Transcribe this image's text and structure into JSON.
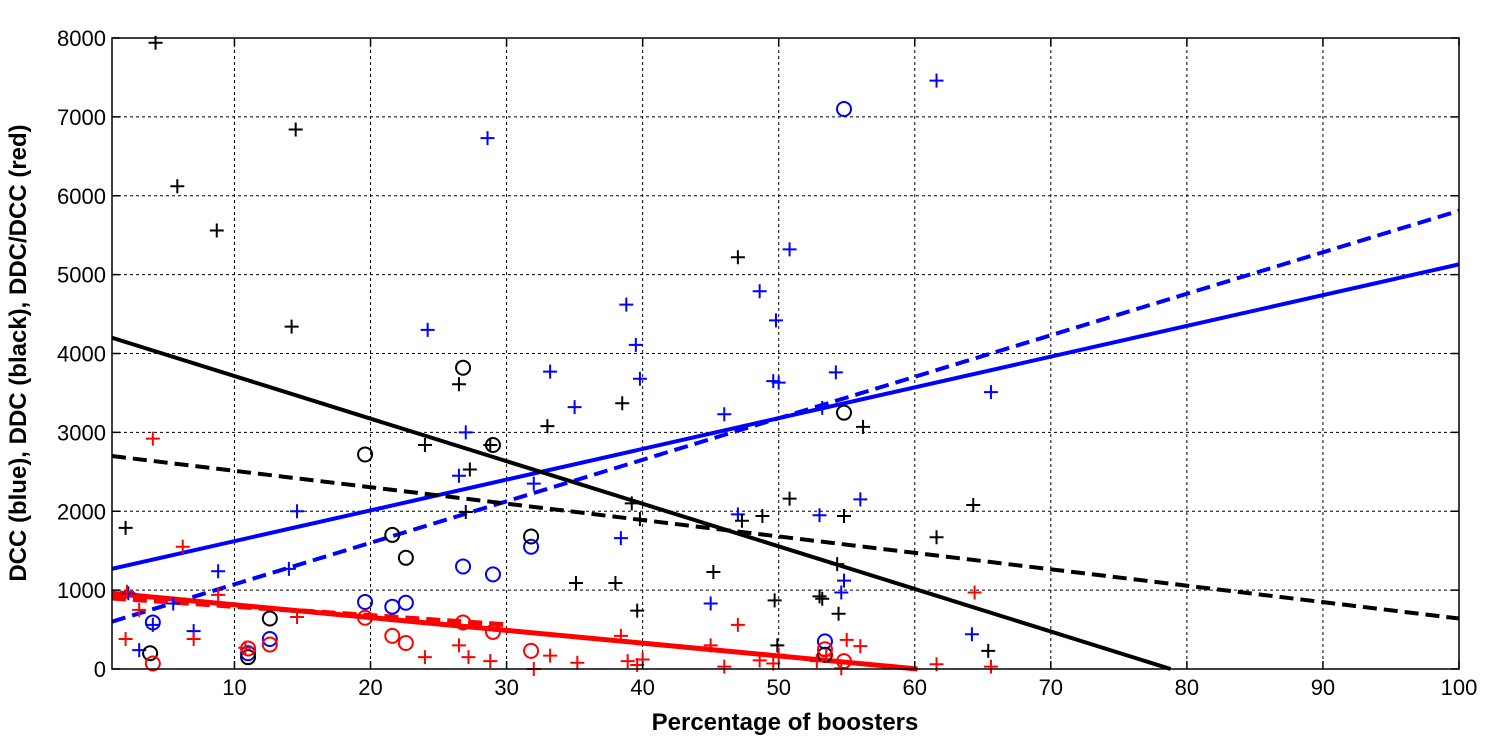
{
  "chart_data": {
    "type": "scatter",
    "xlabel": "Percentage of boosters",
    "ylabel": "DCC (blue), DDC (black), DDC/DCC (red)",
    "xlim": [
      1,
      100
    ],
    "ylim": [
      0,
      8000
    ],
    "x_ticks": [
      "10",
      "20",
      "30",
      "40",
      "50",
      "60",
      "70",
      "80",
      "90",
      "100"
    ],
    "y_ticks": [
      "0",
      "1000",
      "2000",
      "3000",
      "4000",
      "5000",
      "6000",
      "7000",
      "8000"
    ],
    "grid": true,
    "legend": "none",
    "colors": {
      "blue": "#0000ff",
      "black": "#000000",
      "red": "#ff0000"
    },
    "series": [
      {
        "color": "blue",
        "marker": "plus",
        "points": [
          [
            2.2,
            960
          ],
          [
            3,
            240
          ],
          [
            4,
            560
          ],
          [
            5.5,
            830
          ],
          [
            7,
            480
          ],
          [
            8.8,
            1240
          ],
          [
            14,
            1270
          ],
          [
            14.6,
            2000
          ],
          [
            24.2,
            4300
          ],
          [
            26.5,
            2450
          ],
          [
            27,
            3000
          ],
          [
            28.6,
            6730
          ],
          [
            32,
            2350
          ],
          [
            33.2,
            3770
          ],
          [
            35,
            3320
          ],
          [
            38.4,
            1660
          ],
          [
            38.8,
            4620
          ],
          [
            39.5,
            4110
          ],
          [
            39.8,
            3680
          ],
          [
            45,
            830
          ],
          [
            46,
            3230
          ],
          [
            47,
            1960
          ],
          [
            48.6,
            4790
          ],
          [
            49.6,
            3650
          ],
          [
            49.8,
            4420
          ],
          [
            50,
            3630
          ],
          [
            50.8,
            5320
          ],
          [
            53,
            1950
          ],
          [
            53.2,
            3310
          ],
          [
            54.2,
            3760
          ],
          [
            54.6,
            970
          ],
          [
            54.8,
            1120
          ],
          [
            56,
            2150
          ],
          [
            61.6,
            7460
          ],
          [
            64.2,
            440
          ],
          [
            65.6,
            3510
          ]
        ]
      },
      {
        "color": "blue",
        "marker": "circle",
        "points": [
          [
            4,
            590
          ],
          [
            11,
            200
          ],
          [
            12.6,
            380
          ],
          [
            19.6,
            850
          ],
          [
            21.6,
            790
          ],
          [
            22.6,
            840
          ],
          [
            26.8,
            1300
          ],
          [
            29,
            1200
          ],
          [
            31.8,
            1550
          ],
          [
            53.4,
            350
          ],
          [
            54.8,
            7100
          ]
        ]
      },
      {
        "color": "black",
        "marker": "plus",
        "points": [
          [
            2,
            1790
          ],
          [
            4.2,
            7940
          ],
          [
            5.8,
            6120
          ],
          [
            8.7,
            5560
          ],
          [
            14.2,
            4340
          ],
          [
            14.5,
            6840
          ],
          [
            24,
            2840
          ],
          [
            26.5,
            3610
          ],
          [
            27,
            1990
          ],
          [
            27.3,
            2530
          ],
          [
            28.8,
            2840
          ],
          [
            33,
            3080
          ],
          [
            35.1,
            1090
          ],
          [
            38,
            1090
          ],
          [
            38.5,
            3370
          ],
          [
            39.2,
            2100
          ],
          [
            39.6,
            740
          ],
          [
            39.8,
            1900
          ],
          [
            45.2,
            1230
          ],
          [
            47,
            5220
          ],
          [
            47.3,
            1880
          ],
          [
            48.8,
            1940
          ],
          [
            49.7,
            870
          ],
          [
            49.9,
            300
          ],
          [
            50.8,
            2160
          ],
          [
            53,
            920
          ],
          [
            53.2,
            890
          ],
          [
            54.3,
            1330
          ],
          [
            54.4,
            700
          ],
          [
            54.8,
            1940
          ],
          [
            56.2,
            3070
          ],
          [
            61.6,
            1670
          ],
          [
            64.3,
            2080
          ],
          [
            65.4,
            230
          ]
        ]
      },
      {
        "color": "black",
        "marker": "circle",
        "points": [
          [
            3.8,
            200
          ],
          [
            11,
            150
          ],
          [
            12.6,
            640
          ],
          [
            19.6,
            2720
          ],
          [
            21.6,
            1700
          ],
          [
            22.6,
            1410
          ],
          [
            26.8,
            3820
          ],
          [
            29,
            2840
          ],
          [
            31.8,
            1680
          ],
          [
            53.4,
            180
          ],
          [
            54.8,
            3250
          ]
        ]
      },
      {
        "color": "red",
        "marker": "plus",
        "points": [
          [
            2,
            380
          ],
          [
            2.1,
            980
          ],
          [
            3,
            750
          ],
          [
            4,
            2920
          ],
          [
            6.2,
            1550
          ],
          [
            7,
            380
          ],
          [
            8.8,
            940
          ],
          [
            10.8,
            270
          ],
          [
            14.6,
            660
          ],
          [
            24,
            150
          ],
          [
            26.5,
            300
          ],
          [
            27.2,
            150
          ],
          [
            28.8,
            100
          ],
          [
            32,
            0
          ],
          [
            33.2,
            170
          ],
          [
            35.2,
            80
          ],
          [
            38.4,
            420
          ],
          [
            38.9,
            100
          ],
          [
            39.6,
            50
          ],
          [
            40,
            120
          ],
          [
            45,
            300
          ],
          [
            46,
            30
          ],
          [
            47,
            560
          ],
          [
            48.6,
            110
          ],
          [
            49.6,
            70
          ],
          [
            50,
            180
          ],
          [
            52.8,
            100
          ],
          [
            53.5,
            170
          ],
          [
            54.6,
            10
          ],
          [
            55,
            370
          ],
          [
            56,
            290
          ],
          [
            61.6,
            60
          ],
          [
            64.4,
            970
          ],
          [
            65.6,
            30
          ]
        ]
      },
      {
        "color": "red",
        "marker": "circle",
        "points": [
          [
            4,
            70
          ],
          [
            11,
            260
          ],
          [
            12.6,
            310
          ],
          [
            19.6,
            650
          ],
          [
            21.6,
            420
          ],
          [
            22.6,
            330
          ],
          [
            26.8,
            590
          ],
          [
            29,
            470
          ],
          [
            31.8,
            230
          ],
          [
            53.4,
            250
          ],
          [
            54.8,
            100
          ]
        ]
      }
    ],
    "fit_lines": [
      {
        "color": "blue",
        "style": "solid",
        "x": [
          1,
          100
        ],
        "y": [
          1270,
          5130
        ]
      },
      {
        "color": "blue",
        "style": "dashed",
        "x": [
          1,
          100
        ],
        "y": [
          600,
          5810
        ]
      },
      {
        "color": "black",
        "style": "solid",
        "x": [
          1,
          78.8
        ],
        "y": [
          4200,
          0
        ]
      },
      {
        "color": "black",
        "style": "dashed",
        "x": [
          1,
          100
        ],
        "y": [
          2700,
          640
        ]
      },
      {
        "color": "red",
        "style": "solid",
        "x": [
          1,
          60.2
        ],
        "y": [
          960,
          0
        ]
      },
      {
        "color": "red",
        "style": "dashed",
        "x": [
          1,
          30
        ],
        "y": [
          900,
          560
        ]
      }
    ]
  }
}
